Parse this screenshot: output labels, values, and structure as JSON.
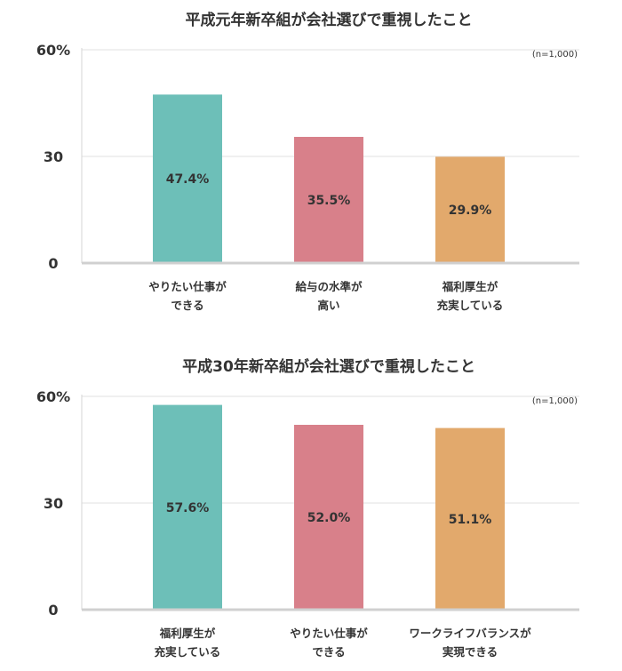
{
  "chart_data": [
    {
      "type": "bar",
      "title": "平成元年新卒組が会社選びで重視したこと",
      "note": "(n=1,000)",
      "categories": [
        [
          "やりたい仕事が",
          "できる"
        ],
        [
          "給与の水準が",
          "高い"
        ],
        [
          "福利厚生が",
          "充実している"
        ]
      ],
      "values": [
        47.4,
        35.5,
        29.9
      ],
      "value_labels": [
        "47.4%",
        "35.5%",
        "29.9%"
      ],
      "colors": [
        "#6dbfb8",
        "#d8808a",
        "#e2a96c"
      ],
      "ylim": [
        0,
        60
      ],
      "yticks": [
        0,
        30,
        60
      ],
      "ytick_labels": [
        "0",
        "30",
        "60%"
      ],
      "grid": true
    },
    {
      "type": "bar",
      "title": "平成30年新卒組が会社選びで重視したこと",
      "note": "(n=1,000)",
      "categories": [
        [
          "福利厚生が",
          "充実している"
        ],
        [
          "やりたい仕事が",
          "できる"
        ],
        [
          "ワークライフバランスが",
          "実現できる"
        ]
      ],
      "values": [
        57.6,
        52.0,
        51.1
      ],
      "value_labels": [
        "57.6%",
        "52.0%",
        "51.1%"
      ],
      "colors": [
        "#6dbfb8",
        "#d8808a",
        "#e2a96c"
      ],
      "ylim": [
        0,
        60
      ],
      "yticks": [
        0,
        30,
        60
      ],
      "ytick_labels": [
        "0",
        "30",
        "60%"
      ],
      "grid": true
    }
  ]
}
